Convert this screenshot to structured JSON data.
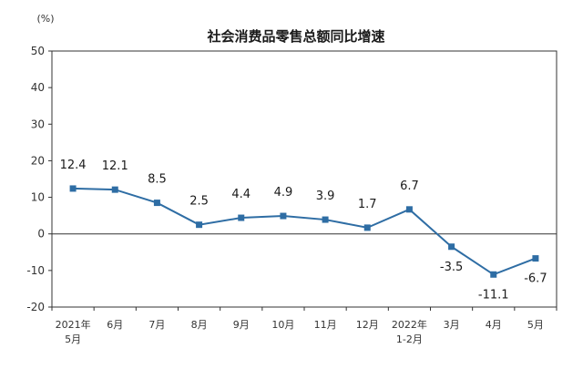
{
  "chart_data": {
    "type": "line",
    "title": "社会消费品零售总额同比增速",
    "unit": "(%)",
    "ylim": [
      -20,
      50
    ],
    "yticks": [
      "50",
      "40",
      "30",
      "20",
      "10",
      "0",
      "-10",
      "-20"
    ],
    "ytick_values": [
      50,
      40,
      30,
      20,
      10,
      0,
      -10,
      -20
    ],
    "categories": [
      [
        "2021年",
        "5月"
      ],
      [
        "6月"
      ],
      [
        "7月"
      ],
      [
        "8月"
      ],
      [
        "9月"
      ],
      [
        "10月"
      ],
      [
        "11月"
      ],
      [
        "12月"
      ],
      [
        "2022年",
        "1-2月"
      ],
      [
        "3月"
      ],
      [
        "4月"
      ],
      [
        "5月"
      ]
    ],
    "values": [
      12.4,
      12.1,
      8.5,
      2.5,
      4.4,
      4.9,
      3.9,
      1.7,
      6.7,
      -3.5,
      -11.1,
      -6.7
    ],
    "data_labels": [
      "12.4",
      "12.1",
      "8.5",
      "2.5",
      "4.4",
      "4.9",
      "3.9",
      "1.7",
      "6.7",
      "-3.5",
      "-11.1",
      "-6.7"
    ],
    "line_color": "#2e6da4",
    "grid": false,
    "legend": "none"
  }
}
